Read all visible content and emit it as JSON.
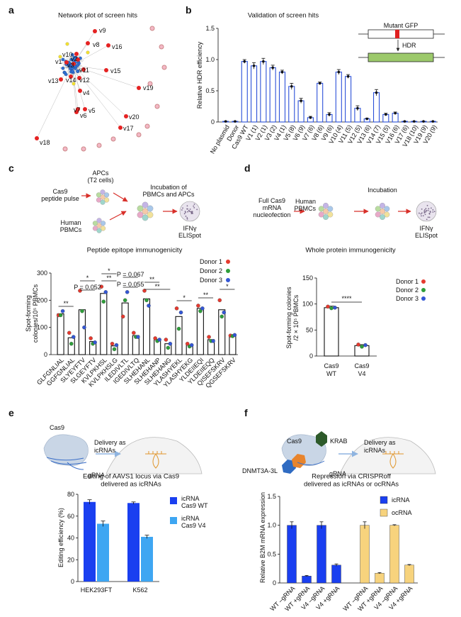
{
  "panel_labels": [
    "a",
    "b",
    "c",
    "d",
    "e",
    "f"
  ],
  "network": {
    "title": "Network plot of screen hits",
    "labels": [
      "v9",
      "v8",
      "v16",
      "v10",
      "v1",
      "v3",
      "v2",
      "v11",
      "v15",
      "v13",
      "v14",
      "v12",
      "v4",
      "v19",
      "v7",
      "v5",
      "v6",
      "v20",
      "v17",
      "v18"
    ]
  },
  "diagrams": {
    "b_inset": {
      "top": "Mutant GFP",
      "arrow": "HDR"
    },
    "c": {
      "apc": [
        "APCs",
        "(T2 cells)"
      ],
      "pulse": [
        "Cas9",
        "peptide pulse"
      ],
      "pbmc": [
        "Human",
        "PBMCs"
      ],
      "incubation": [
        "Incubation of",
        "PBMCs and APCs"
      ],
      "elispot": [
        "IFNγ",
        "ELISpot"
      ]
    },
    "d": {
      "mrna": [
        "Full Cas9",
        "mRNA",
        "nucleofection"
      ],
      "pbmc": [
        "Human",
        "PBMCs"
      ],
      "incubation": "Incubation",
      "elispot": [
        "IFNγ",
        "ELISpot"
      ]
    },
    "e": {
      "cas9": "Cas9",
      "delivery": [
        "Delivery as",
        "icRNAs"
      ],
      "grna": "gRNA"
    },
    "f": {
      "cas9": "Cas9",
      "krab": "KRAB",
      "dnmt": "DNMT3A-3L",
      "delivery": [
        "Delivery as",
        "icRNAs"
      ],
      "grna": "gRNA"
    }
  },
  "chart_data": [
    {
      "type": "bar",
      "title": "Validation of screen hits",
      "ylabel": "Relative HDR efficiency",
      "categories": [
        "No plasmid",
        "Donor",
        "Cas9 WT",
        "V1",
        "V2",
        "V3",
        "V4",
        "V5",
        "V6",
        "V7",
        "V8",
        "V9",
        "V10",
        "V11",
        "V12",
        "V13",
        "V14",
        "V15",
        "V16",
        "V17",
        "V18",
        "V19",
        "V20"
      ],
      "mismatches": [
        null,
        null,
        null,
        "(1)",
        "(1)",
        "(2)",
        "(1)",
        "(8)",
        "(9)",
        "(6)",
        "(6)",
        "(6)",
        "(4)",
        "(5)",
        "(5)",
        "(6)",
        "(7)",
        "(5)",
        "(6)",
        "(6)",
        "(10)",
        "(9)",
        "(9)"
      ],
      "values": [
        0.01,
        0.01,
        0.97,
        0.9,
        0.97,
        0.87,
        0.8,
        0.57,
        0.34,
        0.07,
        0.62,
        0.12,
        0.8,
        0.73,
        0.22,
        0.05,
        0.47,
        0.12,
        0.14,
        0.01,
        0.01,
        0.01,
        0.01
      ],
      "errors": [
        0,
        0,
        0.03,
        0.05,
        0.05,
        0.04,
        0.03,
        0.05,
        0.04,
        0.02,
        0.02,
        0.03,
        0.04,
        0.03,
        0.04,
        0.01,
        0.05,
        0.02,
        0.02,
        0,
        0,
        0,
        0
      ],
      "color": "#2b50d8",
      "ylim": [
        0,
        1.5
      ],
      "yticks": [
        0,
        0.5,
        {
          "value": 1,
          "label": "1.0"
        },
        1.5
      ]
    },
    {
      "type": "bar",
      "title": "Peptide epitope immunogenicity",
      "ylabel": [
        "Spot-forming",
        "colonies/10⁵ PBMCs"
      ],
      "categories": [
        [
          "GLFGNLIAL"
        ],
        [
          "G",
          "G",
          "FGNLIAL"
        ],
        [
          "SLYEYFTV"
        ],
        [
          "SL",
          "G",
          "EYFTV"
        ],
        [
          "KVLPKHSL"
        ],
        [
          "KVLPKHS",
          "LG"
        ],
        [
          "ILEDIVLTL"
        ],
        [
          "I",
          "G",
          "EDIVLT",
          "Q"
        ],
        [
          "SLHEHANL"
        ],
        [
          "SLHEHAN",
          "P"
        ],
        [
          "SLHEHAN",
          "G"
        ],
        [
          "YLASHYEKL"
        ],
        [
          "YLASHYEK",
          "G"
        ],
        [
          "YLDEIIEQI"
        ],
        [
          "YLDEIIE",
          "QQ"
        ],
        [
          "QISEFSKRV"
        ],
        [
          "Q",
          "G",
          "SEFSKRV"
        ]
      ],
      "values": [
        150,
        62,
        165,
        48,
        225,
        32,
        190,
        70,
        205,
        55,
        40,
        140,
        35,
        170,
        55,
        165,
        70
      ],
      "series": [
        {
          "name": "Donor 1",
          "color": "#e53a2f",
          "values": [
            145,
            80,
            235,
            60,
            250,
            40,
            140,
            80,
            235,
            60,
            55,
            170,
            40,
            180,
            65,
            200,
            70
          ]
        },
        {
          "name": "Donor 2",
          "color": "#2e9e3a",
          "values": [
            145,
            40,
            160,
            40,
            195,
            20,
            200,
            65,
            200,
            50,
            25,
            95,
            30,
            160,
            50,
            140,
            68
          ]
        },
        {
          "name": "Donor 3",
          "color": "#3457d5",
          "values": [
            160,
            65,
            100,
            45,
            230,
            35,
            230,
            65,
            180,
            55,
            40,
            155,
            35,
            170,
            50,
            155,
            72
          ]
        }
      ],
      "ylim": [
        0,
        300
      ],
      "yticks": [
        0,
        100,
        200,
        300
      ],
      "annotations": [
        "**",
        "*",
        "P = 0.052",
        "*",
        "**",
        "P = 0.067",
        "P = 0.055",
        "**",
        "**",
        "*",
        "**",
        "*"
      ]
    },
    {
      "type": "bar",
      "title": "Whole protein immunogenicity",
      "ylabel": [
        "Spot-forming colonies",
        "/2 × 10⁵ PBMCs"
      ],
      "categories": [
        [
          "Cas9",
          "WT"
        ],
        [
          "Cas9",
          "V4"
        ]
      ],
      "values": [
        93,
        20
      ],
      "errors": [
        3,
        2
      ],
      "series": [
        {
          "name": "Donor 1",
          "color": "#e53a2f",
          "values": [
            95,
            22
          ]
        },
        {
          "name": "Donor 2",
          "color": "#2e9e3a",
          "values": [
            92,
            18
          ]
        },
        {
          "name": "Donor 3",
          "color": "#3457d5",
          "values": [
            93,
            21
          ]
        }
      ],
      "ylim": [
        0,
        150
      ],
      "yticks": [
        0,
        50,
        100,
        150
      ],
      "annotation": "****"
    },
    {
      "type": "grouped_bar",
      "title": [
        "Editing of AAVS1 locus via Cas9",
        "delivered as icRNAs"
      ],
      "ylabel": "Editing efficiency (%)",
      "categories": [
        "HEK293FT",
        "K562"
      ],
      "series": [
        {
          "name": [
            "icRNA",
            "Cas9 WT"
          ],
          "color": "#1a3ff0",
          "values": [
            73,
            72
          ],
          "errors": [
            2,
            1
          ]
        },
        {
          "name": [
            "icRNA",
            "Cas9 V4"
          ],
          "color": "#3ea6f2",
          "values": [
            53,
            41
          ],
          "errors": [
            2.5,
            1.5
          ]
        }
      ],
      "ylim": [
        0,
        80
      ],
      "yticks": [
        0,
        20,
        40,
        60,
        80
      ]
    },
    {
      "type": "bar",
      "title": [
        "Repression via CRISPRoff",
        "delivered as icRNAs or ocRNAs"
      ],
      "ylabel": "Relative B2M mRNA expression",
      "categories": [
        "WT –gRNA",
        "WT +gRNA",
        "V4 –gRNA",
        "V4 +gRNA",
        "WT –gRNA",
        "WT +gRNA",
        "V4 –gRNA",
        "V4 +gRNA"
      ],
      "series": [
        {
          "name": "icRNA",
          "color": "#1a3ff0",
          "values": [
            1,
            0.12,
            1,
            0.31,
            null,
            null,
            null,
            null
          ],
          "errors": [
            0.06,
            0.01,
            0.06,
            0.02,
            null,
            null,
            null,
            null
          ]
        },
        {
          "name": "ocRNA",
          "color": "#f7d37d",
          "values": [
            null,
            null,
            null,
            null,
            1,
            0.17,
            1,
            0.31
          ],
          "errors": [
            null,
            null,
            null,
            null,
            0.06,
            0.01,
            0.01,
            0.01
          ]
        }
      ],
      "ylim": [
        0,
        1.5
      ],
      "yticks": [
        0,
        0.5,
        {
          "value": 1,
          "label": "1.0"
        },
        1.5
      ]
    }
  ]
}
